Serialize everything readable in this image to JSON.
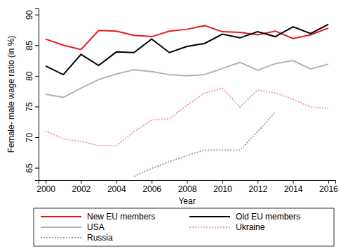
{
  "chart_data": {
    "type": "line",
    "x_label": "Year",
    "y_label": "Female- male wage ratio (in %)",
    "x": [
      2000,
      2001,
      2002,
      2003,
      2004,
      2005,
      2006,
      2007,
      2008,
      2009,
      2010,
      2011,
      2012,
      2013,
      2014,
      2015,
      2016
    ],
    "xlim": [
      1999.6,
      2016.4
    ],
    "xticks": [
      2000,
      2002,
      2004,
      2006,
      2008,
      2010,
      2012,
      2014,
      2016
    ],
    "ylim": [
      63,
      91
    ],
    "yticks": [
      65,
      70,
      75,
      80,
      85,
      90
    ],
    "grid": false,
    "legend": "bottom",
    "series": [
      {
        "name": "New EU members",
        "color": "#e41a1c",
        "line_style": "solid",
        "values": [
          86,
          85,
          84.3,
          87.4,
          87.3,
          86.6,
          86.4,
          87.3,
          87.6,
          88.2,
          87.2,
          87.1,
          86.7,
          87.3,
          86.1,
          86.7,
          87.8
        ]
      },
      {
        "name": "Old EU members",
        "color": "#000000",
        "line_style": "solid",
        "values": [
          81.6,
          80.2,
          83.5,
          81.7,
          83.9,
          83.8,
          86,
          83.8,
          84.8,
          85.3,
          86.8,
          86.2,
          87.2,
          86.4,
          88,
          86.9,
          88.4
        ]
      },
      {
        "name": "USA",
        "color": "#b3b3b3",
        "line_style": "solid",
        "values": [
          77,
          76.5,
          78,
          79.4,
          80.3,
          81,
          80.7,
          80.2,
          80,
          80.2,
          81.2,
          82.2,
          80.9,
          82,
          82.5,
          81.1,
          81.9
        ]
      },
      {
        "name": "Ukraine",
        "color": "#f08a8a",
        "line_style": "dotted",
        "values": [
          71,
          69.7,
          69.3,
          68.6,
          68.6,
          70.9,
          72.8,
          73,
          75.2,
          77.2,
          78,
          74.9,
          77.7,
          77.2,
          76.2,
          74.9,
          74.7
        ]
      },
      {
        "name": "Russia",
        "color": "#8c8c8c",
        "line_style": "dotted",
        "values": [
          null,
          null,
          null,
          null,
          null,
          63.6,
          64.9,
          66,
          67,
          67.9,
          67.9,
          67.9,
          70.9,
          74.1,
          null,
          null,
          null
        ]
      }
    ]
  }
}
